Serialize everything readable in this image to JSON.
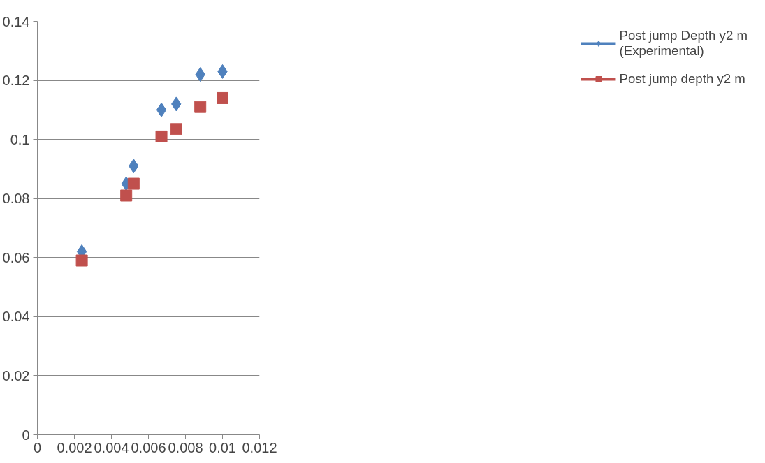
{
  "chart_data": {
    "type": "scatter",
    "xlim": [
      0,
      0.012
    ],
    "xticks": [
      0,
      0.002,
      0.004,
      0.006,
      0.008,
      0.01,
      0.012
    ],
    "ylim": [
      0,
      0.14
    ],
    "yticks": [
      0,
      0.02,
      0.04,
      0.06,
      0.08,
      0.1,
      0.12,
      0.14
    ],
    "grid": "y",
    "legend": "right",
    "series": [
      {
        "name": "Post jump Depth y2 m (Experimental)",
        "color": "#4f81bd",
        "marker": "diamond",
        "x": [
          0.0024,
          0.0048,
          0.0052,
          0.0067,
          0.0075,
          0.0088,
          0.01
        ],
        "values": [
          0.062,
          0.085,
          0.091,
          0.11,
          0.112,
          0.122,
          0.123
        ]
      },
      {
        "name": "Post jump depth y2 m",
        "color": "#c0504d",
        "marker": "square",
        "x": [
          0.0024,
          0.0048,
          0.0052,
          0.0067,
          0.0075,
          0.0088,
          0.01
        ],
        "values": [
          0.059,
          0.081,
          0.085,
          0.101,
          0.1035,
          0.111,
          0.114
        ]
      }
    ]
  }
}
